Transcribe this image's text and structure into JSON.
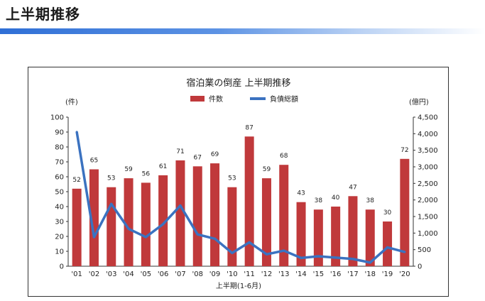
{
  "header": {
    "title": "上半期推移"
  },
  "chart_data": {
    "type": "bar",
    "title": "宿泊業の倒産 上半期推移",
    "categories": [
      "'01",
      "'02",
      "'03",
      "'04",
      "'05",
      "'06",
      "'07",
      "'08",
      "'09",
      "'10",
      "'11",
      "'12",
      "'13",
      "'14",
      "'15",
      "'16",
      "'17",
      "'18",
      "'19",
      "'20"
    ],
    "xlabel": "上半期(1-6月)",
    "ylabel_left": "(件)",
    "ylabel_right": "(億円)",
    "ylim_left": [
      0,
      100
    ],
    "yticks_left": [
      "0",
      "10",
      "20",
      "30",
      "40",
      "50",
      "60",
      "70",
      "80",
      "90",
      "100"
    ],
    "ylim_right": [
      0,
      4500
    ],
    "yticks_right": [
      "0",
      "500",
      "1,000",
      "1,500",
      "2,000",
      "2,500",
      "3,000",
      "3,500",
      "4,000",
      "4,500"
    ],
    "legend_position": "top-center",
    "series": [
      {
        "name": "件数",
        "type": "bar",
        "axis": "left",
        "color": "#c0393b",
        "values": [
          52,
          65,
          53,
          59,
          56,
          61,
          71,
          67,
          69,
          53,
          87,
          59,
          68,
          43,
          38,
          40,
          47,
          38,
          30,
          72
        ],
        "labels": [
          "52",
          "65",
          "53",
          "59",
          "56",
          "61",
          "71",
          "67",
          "69",
          "53",
          "87",
          "59",
          "68",
          "43",
          "38",
          "40",
          "47",
          "38",
          "30",
          "72"
        ]
      },
      {
        "name": "負債総額",
        "type": "line",
        "axis": "right",
        "color": "#3b72c0",
        "values": [
          4050,
          880,
          1880,
          1130,
          880,
          1270,
          1830,
          960,
          830,
          400,
          720,
          360,
          470,
          250,
          300,
          260,
          220,
          110,
          570,
          430
        ]
      }
    ]
  }
}
